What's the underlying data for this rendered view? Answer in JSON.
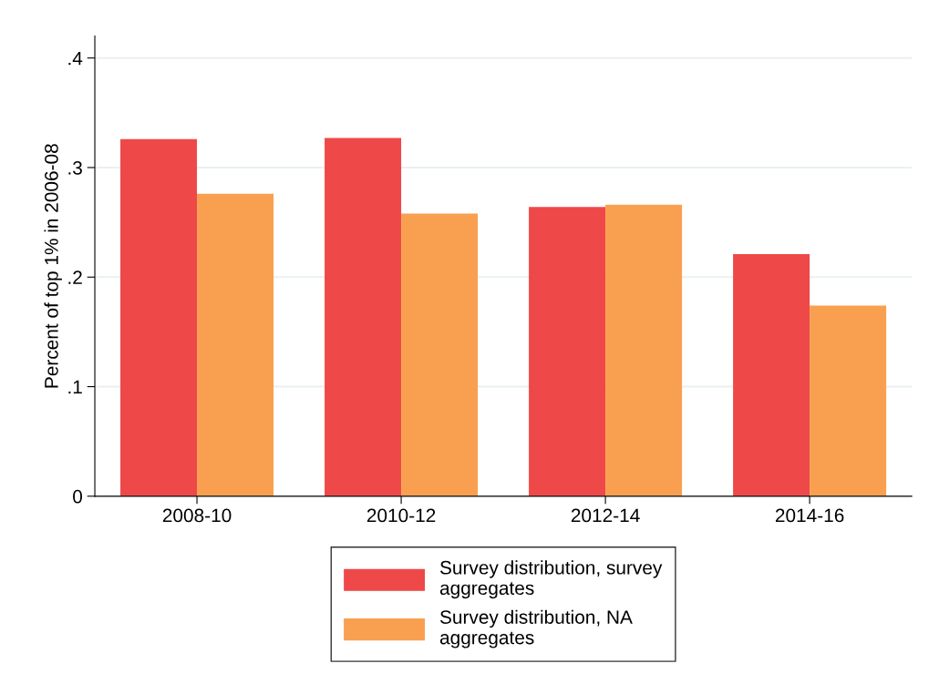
{
  "chart_data": {
    "type": "bar",
    "ylabel": "Percent of top 1% in 2006-08",
    "categories": [
      "2008-10",
      "2010-12",
      "2012-14",
      "2014-16"
    ],
    "series": [
      {
        "name": "Survey distribution, survey\naggregates",
        "color": "#ef4848",
        "values": [
          0.326,
          0.327,
          0.264,
          0.221
        ]
      },
      {
        "name": "Survey distribution, NA\naggregates",
        "color": "#f9a050",
        "values": [
          0.276,
          0.258,
          0.266,
          0.174
        ]
      }
    ],
    "ylim": [
      0,
      0.42
    ],
    "yticks": [
      {
        "value": 0,
        "label": "0"
      },
      {
        "value": 0.1,
        "label": ".1"
      },
      {
        "value": 0.2,
        "label": ".2"
      },
      {
        "value": 0.3,
        "label": ".3"
      },
      {
        "value": 0.4,
        "label": ".4"
      }
    ],
    "grid": "y",
    "legend": "bottom"
  }
}
